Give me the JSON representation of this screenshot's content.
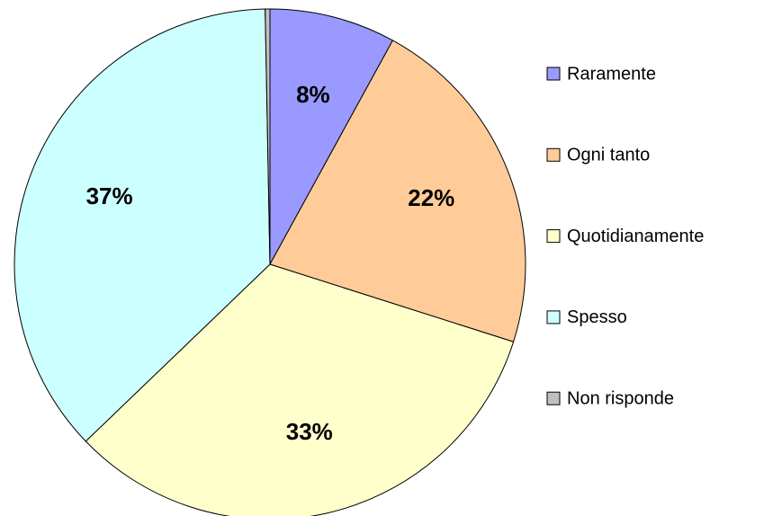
{
  "chart_data": {
    "type": "pie",
    "categories": [
      "Raramente",
      "Ogni tanto",
      "Quotidianamente",
      "Spesso",
      "Non risponde"
    ],
    "values": [
      8,
      22,
      33,
      37,
      0.3
    ],
    "value_labels": [
      "8%",
      "22%",
      "33%",
      "37%",
      null
    ],
    "colors": [
      "#9999ff",
      "#ffcc99",
      "#ffffcc",
      "#ccffff",
      "#c0c0c0"
    ],
    "legend": "right"
  }
}
